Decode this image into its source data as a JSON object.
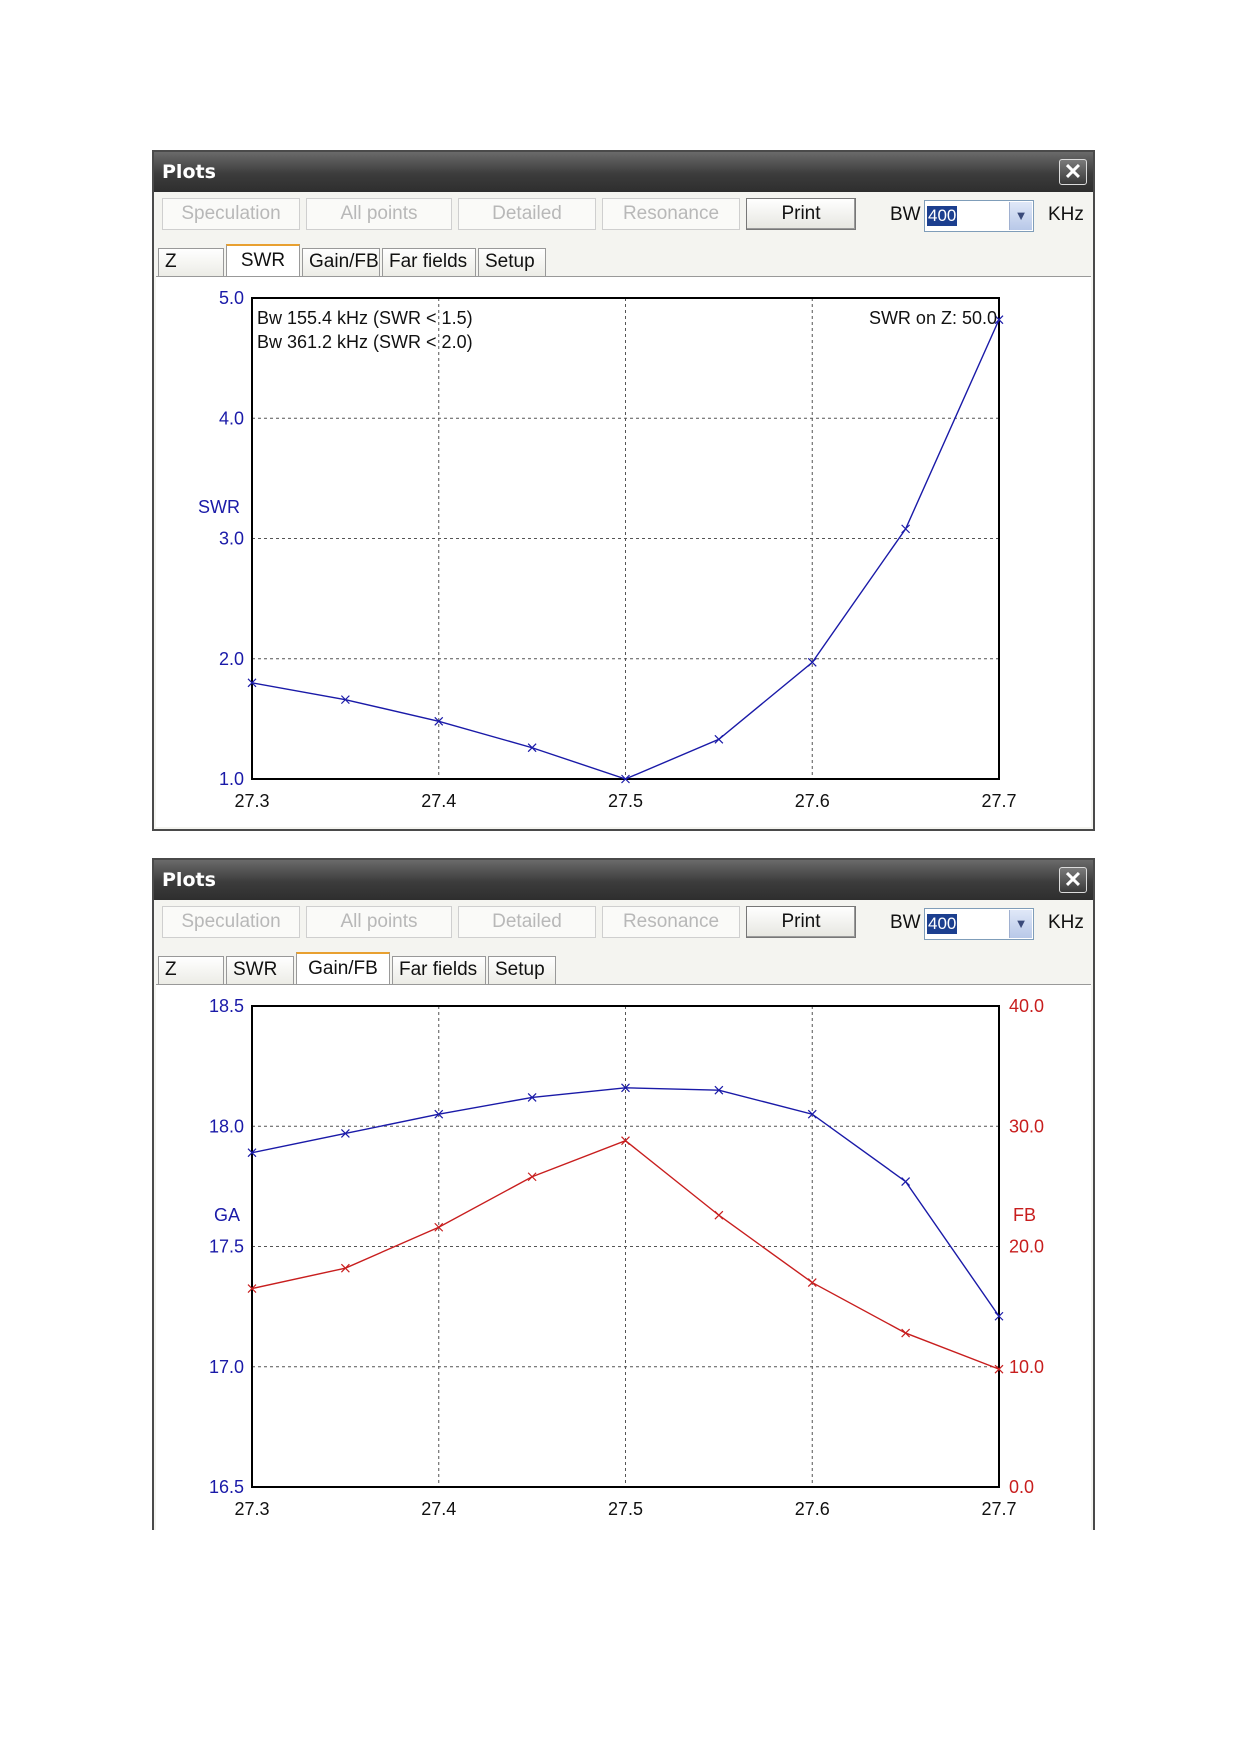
{
  "windows": [
    {
      "title": "Plots",
      "buttons": [
        "Speculation",
        "All points",
        "Detailed",
        "Resonance",
        "Print"
      ],
      "bw_label": "BW",
      "bw_value": "400",
      "bw_unit": "KHz",
      "tabs": [
        "Z",
        "SWR",
        "Gain/FB",
        "Far fields",
        "Setup"
      ],
      "selected_tab": "SWR"
    },
    {
      "title": "Plots",
      "buttons": [
        "Speculation",
        "All points",
        "Detailed",
        "Resonance",
        "Print"
      ],
      "bw_label": "BW",
      "bw_value": "400",
      "bw_unit": "KHz",
      "tabs": [
        "Z",
        "SWR",
        "Gain/FB",
        "Far fields",
        "Setup"
      ],
      "selected_tab": "Gain/FB"
    }
  ],
  "chart_data": [
    {
      "type": "line",
      "ylabel": "SWR",
      "x_ticks": [
        "27.3",
        "27.4",
        "27.5",
        "27.6",
        "27.7"
      ],
      "y_ticks": [
        "1.0",
        "2.0",
        "3.0",
        "4.0",
        "5.0"
      ],
      "xlim": [
        27.3,
        27.7
      ],
      "ylim": [
        1.0,
        5.0
      ],
      "grid": true,
      "annotations": [
        "Bw 155.4 kHz (SWR < 1.5)",
        "Bw 361.2 kHz (SWR < 2.0)",
        "SWR on Z: 50.0"
      ],
      "series": [
        {
          "color": "#1a1aa8",
          "x": [
            27.3,
            27.35,
            27.4,
            27.45,
            27.5,
            27.55,
            27.6,
            27.65,
            27.7
          ],
          "y": [
            1.8,
            1.66,
            1.48,
            1.26,
            1.0,
            1.33,
            1.97,
            3.08,
            4.82
          ]
        }
      ]
    },
    {
      "type": "line",
      "ylabel_left": "GA",
      "ylabel_right": "FB",
      "x_ticks": [
        "27.3",
        "27.4",
        "27.5",
        "27.6",
        "27.7"
      ],
      "y_ticks_left": [
        "16.5",
        "17.0",
        "17.5",
        "18.0",
        "18.5"
      ],
      "y_ticks_right": [
        "0.0",
        "10.0",
        "20.0",
        "30.0",
        "40.0"
      ],
      "xlim": [
        27.3,
        27.7
      ],
      "ylim_left": [
        16.5,
        18.5
      ],
      "ylim_right": [
        0.0,
        40.0
      ],
      "grid": true,
      "series": [
        {
          "axis": "left",
          "color": "#1a1aa8",
          "x": [
            27.3,
            27.35,
            27.4,
            27.45,
            27.5,
            27.55,
            27.6,
            27.65,
            27.7
          ],
          "y": [
            17.89,
            17.97,
            18.05,
            18.12,
            18.16,
            18.15,
            18.05,
            17.77,
            17.21
          ]
        },
        {
          "axis": "right",
          "color": "#c81e1e",
          "x": [
            27.3,
            27.35,
            27.4,
            27.45,
            27.5,
            27.55,
            27.6,
            27.65,
            27.7
          ],
          "y": [
            16.5,
            18.2,
            21.6,
            25.8,
            28.8,
            22.6,
            17.0,
            12.8,
            9.8
          ]
        }
      ]
    }
  ]
}
